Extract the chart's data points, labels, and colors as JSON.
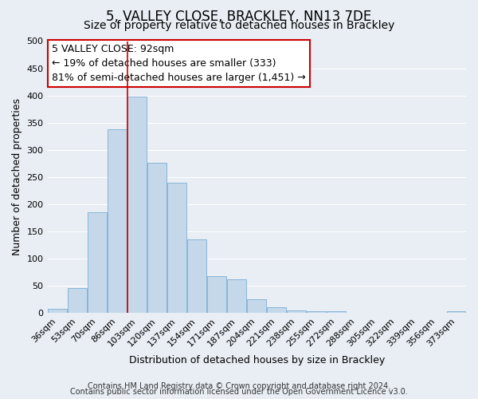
{
  "title": "5, VALLEY CLOSE, BRACKLEY, NN13 7DE",
  "subtitle": "Size of property relative to detached houses in Brackley",
  "xlabel": "Distribution of detached houses by size in Brackley",
  "ylabel": "Number of detached properties",
  "bar_labels": [
    "36sqm",
    "53sqm",
    "70sqm",
    "86sqm",
    "103sqm",
    "120sqm",
    "137sqm",
    "154sqm",
    "171sqm",
    "187sqm",
    "204sqm",
    "221sqm",
    "238sqm",
    "255sqm",
    "272sqm",
    "288sqm",
    "305sqm",
    "322sqm",
    "339sqm",
    "356sqm",
    "373sqm"
  ],
  "bar_heights": [
    8,
    46,
    185,
    338,
    398,
    277,
    240,
    136,
    68,
    62,
    25,
    11,
    5,
    4,
    3,
    0,
    0,
    0,
    0,
    0,
    3
  ],
  "bar_color": "#c5d8ea",
  "bar_edge_color": "#7aaed4",
  "vline_x": 3.5,
  "vline_color": "#cc0000",
  "annotation_line1": "5 VALLEY CLOSE: 92sqm",
  "annotation_line2": "← 19% of detached houses are smaller (333)",
  "annotation_line3": "81% of semi-detached houses are larger (1,451) →",
  "ylim": [
    0,
    500
  ],
  "yticks": [
    0,
    50,
    100,
    150,
    200,
    250,
    300,
    350,
    400,
    450,
    500
  ],
  "footer_line1": "Contains HM Land Registry data © Crown copyright and database right 2024.",
  "footer_line2": "Contains public sector information licensed under the Open Government Licence v3.0.",
  "bg_color": "#e8eef4",
  "plot_bg_color": "#e8eef4",
  "grid_color": "#ffffff",
  "title_fontsize": 12,
  "subtitle_fontsize": 10,
  "axis_label_fontsize": 9,
  "tick_fontsize": 8,
  "annotation_fontsize": 9,
  "footer_fontsize": 7
}
